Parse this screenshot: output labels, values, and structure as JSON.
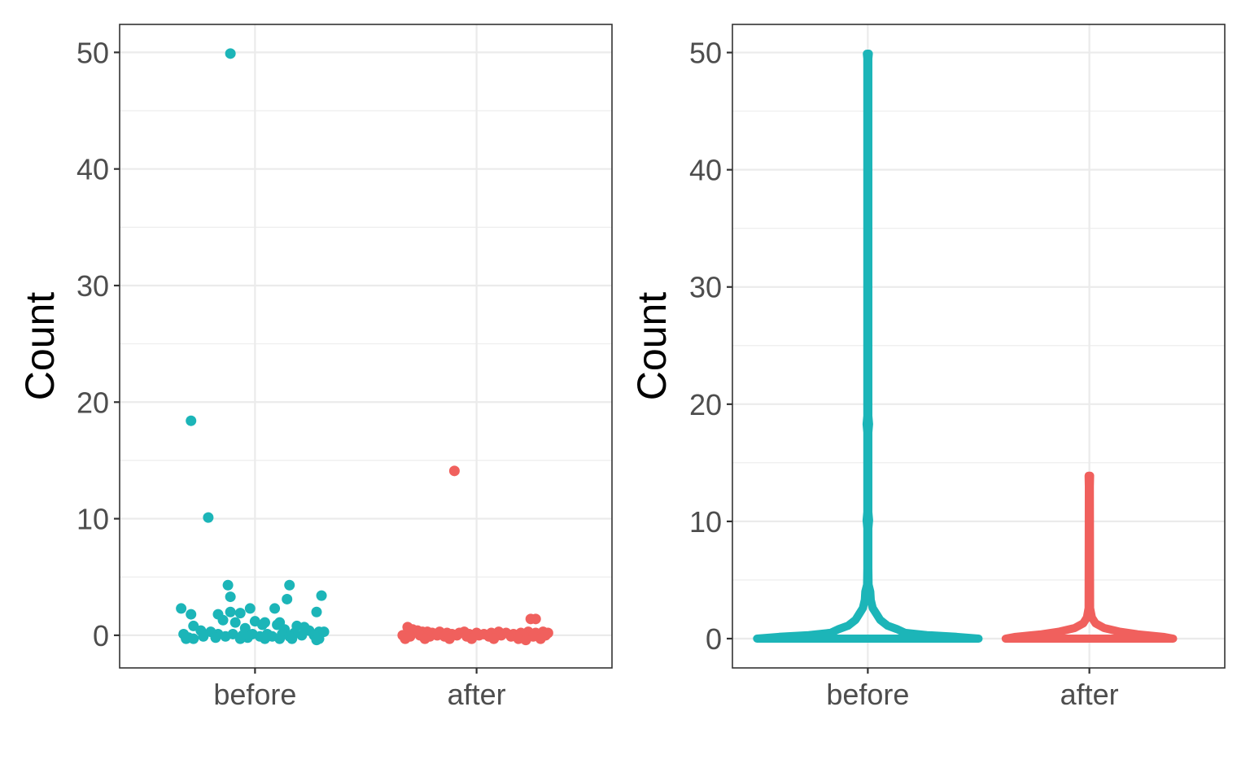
{
  "chart_data": [
    {
      "type": "scatter",
      "ylabel": "Count",
      "xlabel": "",
      "categories": [
        "before",
        "after"
      ],
      "ylim": [
        -2.8,
        52.4
      ],
      "y_ticks": [
        0,
        10,
        20,
        30,
        40,
        50
      ],
      "y_tick_labels": [
        "0",
        "10",
        "20",
        "30",
        "40",
        "50"
      ],
      "grid": true,
      "legend": "none",
      "series": [
        {
          "category": "before",
          "color": "#1CB5B8",
          "points": [
            {
              "x": -0.1,
              "y": 49.9
            },
            {
              "x": -0.26,
              "y": 18.4
            },
            {
              "x": -0.19,
              "y": 10.1
            },
            {
              "x": -0.11,
              "y": 4.3
            },
            {
              "x": 0.14,
              "y": 4.3
            },
            {
              "x": 0.27,
              "y": 3.4
            },
            {
              "x": -0.1,
              "y": 3.3
            },
            {
              "x": 0.13,
              "y": 3.1
            },
            {
              "x": -0.3,
              "y": 2.3
            },
            {
              "x": -0.02,
              "y": 2.3
            },
            {
              "x": 0.08,
              "y": 2.3
            },
            {
              "x": 0.25,
              "y": 2.0
            },
            {
              "x": -0.1,
              "y": 2.0
            },
            {
              "x": -0.06,
              "y": 1.9
            },
            {
              "x": -0.15,
              "y": 1.8
            },
            {
              "x": -0.26,
              "y": 1.8
            },
            {
              "x": -0.13,
              "y": 1.3
            },
            {
              "x": 0.0,
              "y": 1.2
            },
            {
              "x": 0.1,
              "y": 1.1
            },
            {
              "x": 0.04,
              "y": 1.1
            },
            {
              "x": -0.08,
              "y": 1.1
            },
            {
              "x": -0.25,
              "y": 0.8
            },
            {
              "x": 0.09,
              "y": 0.9
            },
            {
              "x": 0.03,
              "y": 0.9
            },
            {
              "x": 0.17,
              "y": 0.8
            },
            {
              "x": 0.2,
              "y": 0.7
            },
            {
              "x": -0.04,
              "y": 0.6
            },
            {
              "x": -0.22,
              "y": 0.4
            },
            {
              "x": 0.12,
              "y": 0.5
            },
            {
              "x": 0.22,
              "y": 0.4
            },
            {
              "x": -0.18,
              "y": 0.3
            },
            {
              "x": 0.26,
              "y": 0.3
            },
            {
              "x": 0.28,
              "y": 0.3
            },
            {
              "x": -0.29,
              "y": 0.1
            },
            {
              "x": -0.15,
              "y": 0.1
            },
            {
              "x": -0.09,
              "y": 0.1
            },
            {
              "x": -0.01,
              "y": 0.1
            },
            {
              "x": 0.05,
              "y": 0.1
            },
            {
              "x": 0.11,
              "y": 0.1
            },
            {
              "x": 0.16,
              "y": 0.2
            },
            {
              "x": 0.24,
              "y": 0.0
            },
            {
              "x": -0.27,
              "y": -0.2
            },
            {
              "x": -0.21,
              "y": -0.1
            },
            {
              "x": -0.12,
              "y": -0.1
            },
            {
              "x": -0.05,
              "y": 0.0
            },
            {
              "x": 0.02,
              "y": -0.1
            },
            {
              "x": 0.07,
              "y": -0.1
            },
            {
              "x": 0.14,
              "y": -0.1
            },
            {
              "x": 0.19,
              "y": 0.0
            },
            {
              "x": 0.26,
              "y": -0.3
            },
            {
              "x": -0.28,
              "y": -0.3
            },
            {
              "x": -0.25,
              "y": -0.3
            },
            {
              "x": -0.16,
              "y": -0.2
            },
            {
              "x": -0.03,
              "y": -0.2
            },
            {
              "x": 0.04,
              "y": -0.3
            },
            {
              "x": 0.1,
              "y": -0.3
            },
            {
              "x": 0.15,
              "y": -0.3
            },
            {
              "x": 0.25,
              "y": -0.4
            },
            {
              "x": -0.06,
              "y": -0.3
            }
          ]
        },
        {
          "category": "after",
          "color": "#F0605D",
          "points": [
            {
              "x": -0.09,
              "y": 14.1
            },
            {
              "x": 0.22,
              "y": 1.4
            },
            {
              "x": 0.24,
              "y": 1.4
            },
            {
              "x": -0.28,
              "y": 0.7
            },
            {
              "x": -0.26,
              "y": 0.5
            },
            {
              "x": -0.24,
              "y": 0.4
            },
            {
              "x": -0.22,
              "y": 0.3
            },
            {
              "x": -0.2,
              "y": 0.3
            },
            {
              "x": -0.18,
              "y": 0.2
            },
            {
              "x": -0.15,
              "y": 0.3
            },
            {
              "x": -0.12,
              "y": 0.2
            },
            {
              "x": -0.1,
              "y": 0.1
            },
            {
              "x": -0.07,
              "y": 0.2
            },
            {
              "x": -0.05,
              "y": 0.3
            },
            {
              "x": -0.03,
              "y": 0.1
            },
            {
              "x": 0.0,
              "y": 0.2
            },
            {
              "x": 0.03,
              "y": 0.1
            },
            {
              "x": 0.06,
              "y": 0.2
            },
            {
              "x": 0.09,
              "y": 0.3
            },
            {
              "x": 0.12,
              "y": 0.2
            },
            {
              "x": 0.15,
              "y": 0.1
            },
            {
              "x": 0.18,
              "y": 0.2
            },
            {
              "x": 0.21,
              "y": 0.3
            },
            {
              "x": 0.24,
              "y": 0.2
            },
            {
              "x": 0.27,
              "y": 0.3
            },
            {
              "x": 0.29,
              "y": 0.2
            },
            {
              "x": -0.3,
              "y": 0.0
            },
            {
              "x": -0.27,
              "y": -0.1
            },
            {
              "x": -0.23,
              "y": 0.0
            },
            {
              "x": -0.19,
              "y": -0.1
            },
            {
              "x": -0.16,
              "y": 0.0
            },
            {
              "x": -0.13,
              "y": -0.1
            },
            {
              "x": -0.08,
              "y": 0.0
            },
            {
              "x": -0.04,
              "y": -0.1
            },
            {
              "x": 0.01,
              "y": 0.0
            },
            {
              "x": 0.05,
              "y": -0.1
            },
            {
              "x": 0.1,
              "y": 0.0
            },
            {
              "x": 0.14,
              "y": -0.1
            },
            {
              "x": 0.19,
              "y": 0.0
            },
            {
              "x": 0.23,
              "y": -0.1
            },
            {
              "x": 0.28,
              "y": 0.0
            },
            {
              "x": -0.29,
              "y": -0.3
            },
            {
              "x": -0.21,
              "y": -0.3
            },
            {
              "x": -0.11,
              "y": -0.3
            },
            {
              "x": -0.02,
              "y": -0.3
            },
            {
              "x": 0.07,
              "y": -0.3
            },
            {
              "x": 0.17,
              "y": -0.3
            },
            {
              "x": 0.2,
              "y": -0.4
            },
            {
              "x": 0.26,
              "y": -0.3
            }
          ]
        }
      ]
    },
    {
      "type": "violin",
      "ylabel": "Count",
      "xlabel": "",
      "categories": [
        "before",
        "after"
      ],
      "ylim": [
        -2.5,
        52.4
      ],
      "y_ticks": [
        0,
        10,
        20,
        30,
        40,
        50
      ],
      "y_tick_labels": [
        "0",
        "10",
        "20",
        "30",
        "40",
        "50"
      ],
      "grid": true,
      "legend": "none",
      "series": [
        {
          "category": "before",
          "color": "#1CB5B8",
          "ymin": 0,
          "ymax": 49.9,
          "density_profile": [
            {
              "y": 0.0,
              "half_width": 0.45
            },
            {
              "y": 0.15,
              "half_width": 0.36
            },
            {
              "y": 0.3,
              "half_width": 0.24
            },
            {
              "y": 0.5,
              "half_width": 0.15
            },
            {
              "y": 0.8,
              "half_width": 0.12
            },
            {
              "y": 1.1,
              "half_width": 0.08
            },
            {
              "y": 1.6,
              "half_width": 0.05
            },
            {
              "y": 2.1,
              "half_width": 0.035
            },
            {
              "y": 2.6,
              "half_width": 0.02
            },
            {
              "y": 3.3,
              "half_width": 0.012
            },
            {
              "y": 4.0,
              "half_width": 0.01
            },
            {
              "y": 4.6,
              "half_width": 0.003
            },
            {
              "y": 6.0,
              "half_width": 0.002
            },
            {
              "y": 9.4,
              "half_width": 0.002
            },
            {
              "y": 10.1,
              "half_width": 0.005
            },
            {
              "y": 10.8,
              "half_width": 0.002
            },
            {
              "y": 17.6,
              "half_width": 0.002
            },
            {
              "y": 18.3,
              "half_width": 0.005
            },
            {
              "y": 19.0,
              "half_width": 0.002
            },
            {
              "y": 49.5,
              "half_width": 0.002
            },
            {
              "y": 49.9,
              "half_width": 0.004
            }
          ]
        },
        {
          "category": "after",
          "color": "#F0605D",
          "ymin": 0,
          "ymax": 13.9,
          "density_profile": [
            {
              "y": 0.0,
              "half_width": 0.34
            },
            {
              "y": 0.15,
              "half_width": 0.3
            },
            {
              "y": 0.35,
              "half_width": 0.2
            },
            {
              "y": 0.6,
              "half_width": 0.12
            },
            {
              "y": 0.9,
              "half_width": 0.06
            },
            {
              "y": 1.3,
              "half_width": 0.025
            },
            {
              "y": 1.8,
              "half_width": 0.01
            },
            {
              "y": 2.6,
              "half_width": 0.003
            },
            {
              "y": 13.0,
              "half_width": 0.002
            },
            {
              "y": 13.9,
              "half_width": 0.003
            }
          ]
        }
      ]
    }
  ]
}
